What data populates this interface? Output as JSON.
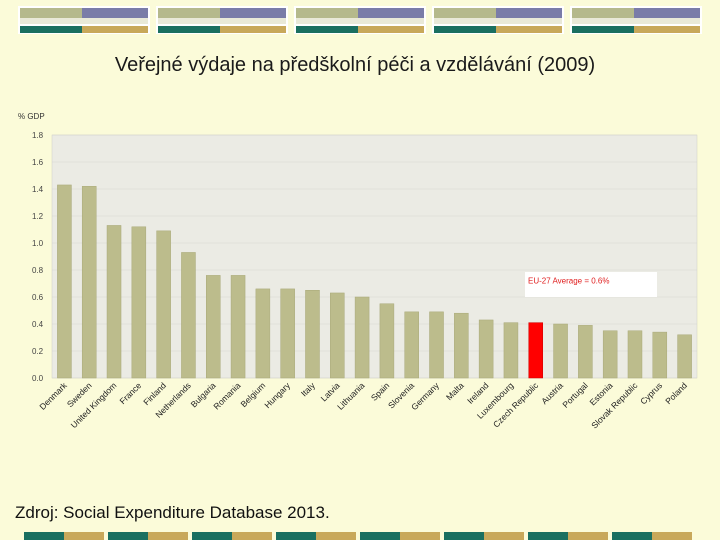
{
  "slide": {
    "title": "Veřejné výdaje na předškolní péči a vzdělávání (2009)",
    "source": "Zdroj: Social Expenditure Database 2013."
  },
  "colors": {
    "background": "#fbfbd9",
    "plot_bg": "#ebebe4",
    "bar": "#bcbc8c",
    "highlight": "#ff0000",
    "deco_olive": "#b5b98c",
    "deco_purple": "#7a7ca8",
    "deco_teal": "#1a6f60",
    "deco_gold": "#c8a85a"
  },
  "chart_data": {
    "type": "bar",
    "ylabel": "% GDP",
    "ylim": [
      0,
      1.8
    ],
    "yticks": [
      "0.0",
      "0.2",
      "0.4",
      "0.6",
      "0.8",
      "1.0",
      "1.2",
      "1.4",
      "1.6",
      "1.8"
    ],
    "grid": true,
    "categories": [
      "Denmark",
      "Sweden",
      "United Kingdom",
      "France",
      "Finland",
      "Netherlands",
      "Bulgaria",
      "Romania",
      "Belgium",
      "Hungary",
      "Italy",
      "Latvia",
      "Lithuania",
      "Spain",
      "Slovenia",
      "Germany",
      "Malta",
      "Ireland",
      "Luxembourg",
      "Czech Republic",
      "Austria",
      "Portugal",
      "Estonia",
      "Slovak Republic",
      "Cyprus",
      "Poland"
    ],
    "values": [
      1.43,
      1.42,
      1.13,
      1.12,
      1.09,
      0.93,
      0.76,
      0.76,
      0.66,
      0.66,
      0.65,
      0.63,
      0.6,
      0.55,
      0.49,
      0.49,
      0.48,
      0.43,
      0.41,
      0.41,
      0.4,
      0.39,
      0.35,
      0.35,
      0.34,
      0.32
    ],
    "highlight_category": "Czech Republic",
    "annotation": "EU-27 Average = 0.6%"
  }
}
